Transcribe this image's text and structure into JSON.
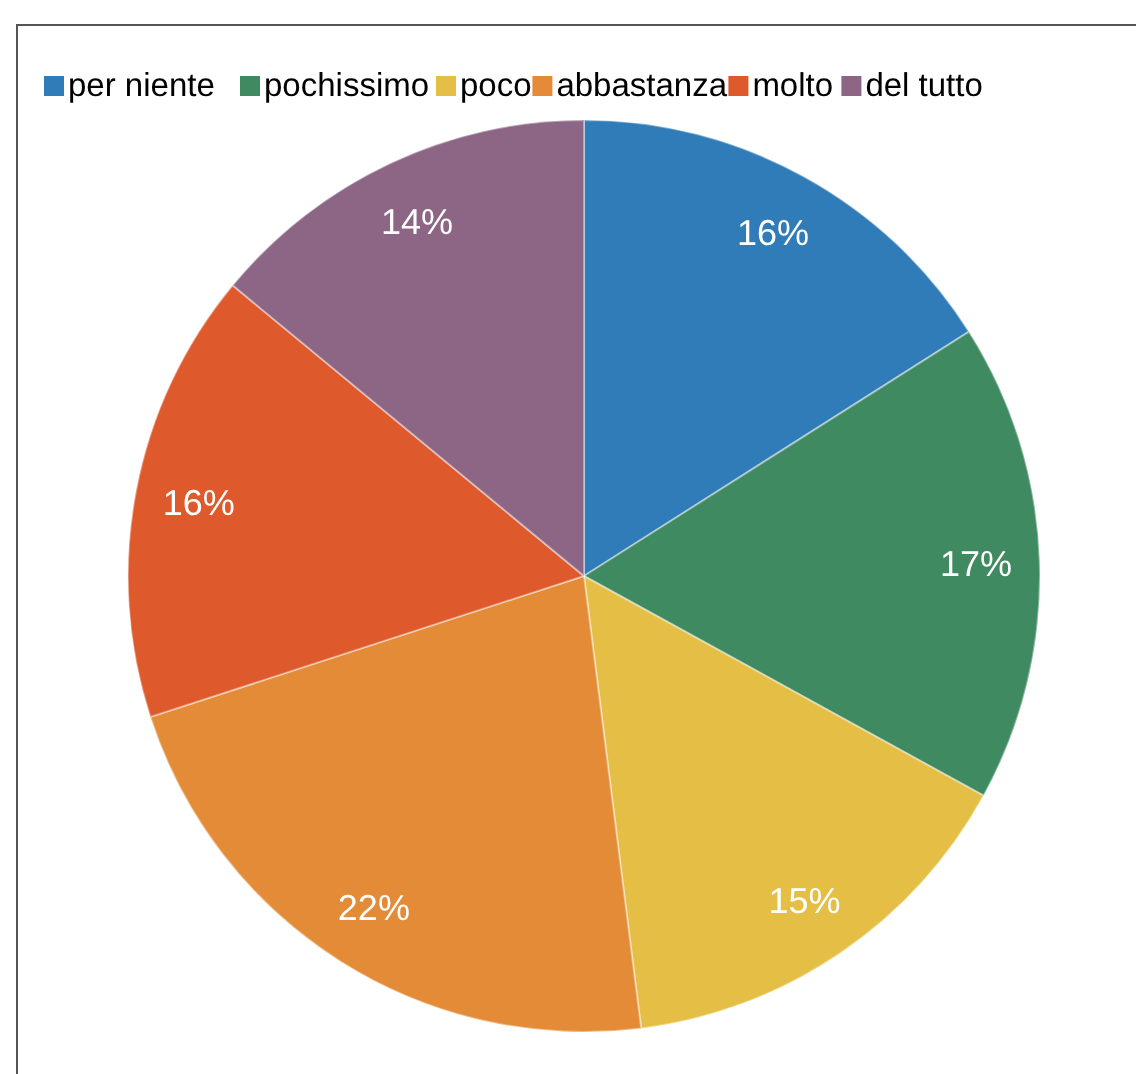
{
  "chart_data": {
    "type": "pie",
    "categories": [
      "per niente",
      "pochissimo",
      "poco",
      "abbastanza",
      "molto",
      "del tutto"
    ],
    "values": [
      16,
      17,
      15,
      22,
      16,
      14
    ],
    "colors": [
      "#2f7cb8",
      "#3f8a60",
      "#e5bf45",
      "#e38b36",
      "#de5a2c",
      "#8d6585"
    ],
    "value_labels": [
      "16%",
      "17%",
      "15%",
      "22%",
      "16%",
      "14%"
    ],
    "legend": "top left"
  }
}
